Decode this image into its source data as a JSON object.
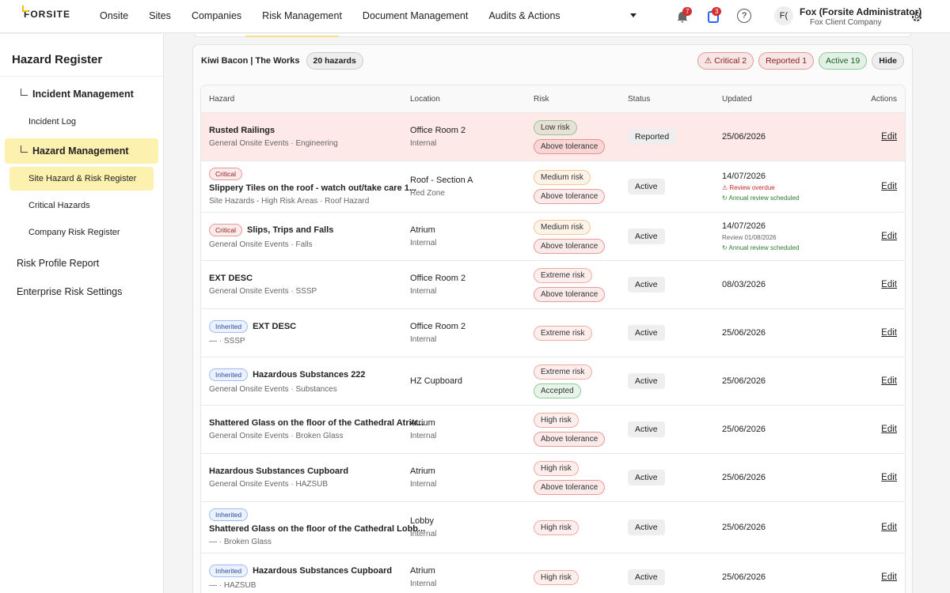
{
  "header": {
    "logo": "FORSITE",
    "nav": [
      "Onsite",
      "Sites",
      "Companies",
      "Risk Management",
      "Document Management",
      "Audits & Actions"
    ],
    "notifications": "7",
    "tasks": "3",
    "help": "?",
    "avatar": "F(",
    "user_name": "Fox (Forsite Administrator)",
    "user_company": "Fox Client Company"
  },
  "sidebar": {
    "title": "Hazard Register",
    "groups": [
      {
        "title": "Incident Management",
        "items": [
          "Incident Log"
        ]
      },
      {
        "title": "Hazard Management",
        "items": [
          "Site Hazard & Risk Register",
          "Critical Hazards",
          "Company Risk Register"
        ]
      }
    ],
    "links": [
      "Risk Profile Report",
      "Enterprise Risk Settings"
    ]
  },
  "panel": {
    "site": "Kiwi Bacon | The Works",
    "count": "20 hazards",
    "chips": [
      {
        "label": "⚠ Critical 2",
        "color": "#d9534f"
      },
      {
        "label": "Reported 1",
        "color": "#d9534f"
      },
      {
        "label": "Active 19",
        "color": "#3aa655"
      }
    ],
    "hide": "Hide"
  },
  "table": {
    "columns": [
      "Hazard",
      "Location",
      "Risk",
      "Status",
      "Updated",
      "Actions"
    ],
    "rows": [
      {
        "name": "Rusted Railings",
        "category": "General Onsite Events · Engineering",
        "location": "Office Room 2",
        "zone": "Internal",
        "risk": [
          {
            "label": "Low risk",
            "color": "#4caf50"
          },
          {
            "label": "Above tolerance",
            "color": "#d9534f"
          }
        ],
        "status": "Reported",
        "updated": "25/06/2026",
        "action": "Edit"
      },
      {
        "tag": {
          "label": "Critical",
          "color": "#d9534f"
        },
        "name": "Slippery Tiles on the roof - watch out/take care 1...",
        "category": "Site Hazards - High Risk Areas · Roof Hazard",
        "location": "Roof - Section A",
        "zone": "Red Zone",
        "risk": [
          {
            "label": "Medium risk",
            "color": "#f0a040"
          },
          {
            "label": "Above tolerance",
            "color": "#d9534f"
          }
        ],
        "status": "Active",
        "updated": "14/07/2026",
        "notes": [
          {
            "text": "⚠ Review overdue",
            "color": "#c62828"
          },
          {
            "text": "↻ Annual review scheduled",
            "color": "#2e7d32"
          }
        ],
        "action": "Edit"
      },
      {
        "tag": {
          "label": "Critical",
          "color": "#d9534f"
        },
        "name": "Slips, Trips and Falls",
        "category": "General Onsite Events · Falls",
        "location": "Atrium",
        "zone": "Internal",
        "risk": [
          {
            "label": "Medium risk",
            "color": "#f0a040"
          },
          {
            "label": "Above tolerance",
            "color": "#d9534f"
          }
        ],
        "status": "Active",
        "updated": "14/07/2026",
        "notes": [
          {
            "text": "Review 01/08/2026",
            "color": "#666666"
          },
          {
            "text": "↻ Annual review scheduled",
            "color": "#2e7d32"
          }
        ],
        "action": "Edit"
      },
      {
        "name": "EXT DESC",
        "category": "General Onsite Events · SSSP",
        "location": "Office Room 2",
        "zone": "Internal",
        "risk": [
          {
            "label": "Extreme risk",
            "color": "#e57060"
          },
          {
            "label": "Above tolerance",
            "color": "#d9534f"
          }
        ],
        "status": "Active",
        "updated": "08/03/2026",
        "action": "Edit"
      },
      {
        "tag": {
          "label": "Inherited",
          "color": "#5b8def"
        },
        "name": "EXT DESC",
        "category": "— · SSSP",
        "location": "Office Room 2",
        "zone": "Internal",
        "risk": [
          {
            "label": "Extreme risk",
            "color": "#e57060"
          }
        ],
        "status": "Active",
        "updated": "25/06/2026",
        "action": "Edit"
      },
      {
        "tag": {
          "label": "Inherited",
          "color": "#5b8def"
        },
        "name": "Hazardous Substances 222",
        "category": "General Onsite Events · Substances",
        "location": "HZ Cupboard",
        "risk": [
          {
            "label": "Extreme risk",
            "color": "#e57060"
          },
          {
            "label": "Accepted",
            "color": "#3aa655"
          }
        ],
        "status": "Active",
        "updated": "25/06/2026",
        "action": "Edit"
      },
      {
        "name": "Shattered Glass on the floor of the Cathedral Atriu...",
        "category": "General Onsite Events · Broken Glass",
        "location": "Atrium",
        "zone": "Internal",
        "risk": [
          {
            "label": "High risk",
            "color": "#e57060"
          },
          {
            "label": "Above tolerance",
            "color": "#d9534f"
          }
        ],
        "status": "Active",
        "updated": "25/06/2026",
        "action": "Edit"
      },
      {
        "name": "Hazardous Substances Cupboard",
        "category": "General Onsite Events · HAZSUB",
        "location": "Atrium",
        "zone": "Internal",
        "risk": [
          {
            "label": "High risk",
            "color": "#e57060"
          },
          {
            "label": "Above tolerance",
            "color": "#d9534f"
          }
        ],
        "status": "Active",
        "updated": "25/06/2026",
        "action": "Edit"
      },
      {
        "tag": {
          "label": "Inherited",
          "color": "#5b8def"
        },
        "name": "Shattered Glass on the floor of the Cathedral Lobb...",
        "category": "— · Broken Glass",
        "location": "Lobby",
        "zone": "Internal",
        "risk": [
          {
            "label": "High risk",
            "color": "#e57060"
          }
        ],
        "status": "Active",
        "updated": "25/06/2026",
        "action": "Edit"
      },
      {
        "tag": {
          "label": "Inherited",
          "color": "#5b8def"
        },
        "name": "Hazardous Substances Cupboard",
        "category": "— · HAZSUB",
        "location": "Atrium",
        "zone": "Internal",
        "risk": [
          {
            "label": "High risk",
            "color": "#e57060"
          }
        ],
        "status": "Active",
        "updated": "25/06/2026",
        "action": "Edit"
      }
    ]
  }
}
